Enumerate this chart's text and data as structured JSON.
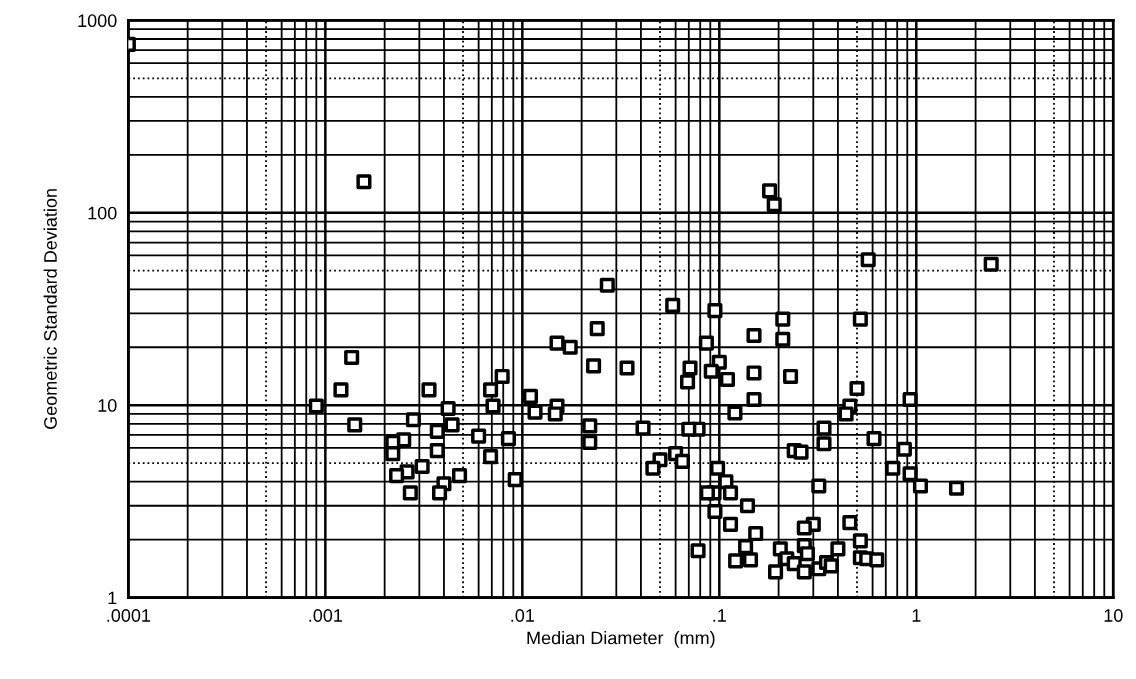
{
  "chart_data": {
    "type": "scatter",
    "xlabel": "Median Diameter  (mm)",
    "ylabel": "Geometric Standard Deviation",
    "log": "xy",
    "grid": true,
    "marker": "square",
    "xlim": [
      0.0001,
      10
    ],
    "ylim": [
      1,
      1000
    ],
    "xticks": [
      {
        "value": 0.0001,
        "label": ".0001"
      },
      {
        "value": 0.001,
        "label": ".001"
      },
      {
        "value": 0.01,
        "label": ".01"
      },
      {
        "value": 0.1,
        "label": ".1"
      },
      1,
      10
    ],
    "yticks": [
      1,
      10,
      100,
      1000
    ],
    "series": [
      {
        "color": "#000000",
        "x": [
          0.0001,
          0.00157,
          0.00136,
          0.0012,
          0.0009,
          0.00336,
          0.0042,
          0.0079,
          0.0069,
          0.0071,
          0.00141,
          0.0028,
          0.0037,
          0.0044,
          0.0025,
          0.0022,
          0.0037,
          0.0022,
          0.0031,
          0.0026,
          0.0023,
          0.0048,
          0.004,
          0.0038,
          0.0027,
          0.006,
          0.0085,
          0.0069,
          0.0092,
          0.18,
          0.19,
          0.57,
          0.027,
          0.058,
          0.095,
          0.21,
          0.52,
          0.15,
          0.21,
          0.024,
          0.015,
          0.0175,
          0.086,
          0.023,
          0.034,
          0.071,
          0.1,
          0.091,
          0.069,
          0.11,
          0.15,
          0.23,
          0.5,
          0.011,
          0.015,
          0.15,
          0.0116,
          0.0147,
          0.022,
          0.022,
          0.041,
          0.078,
          0.07,
          0.12,
          0.46,
          0.44,
          0.34,
          0.34,
          0.24,
          0.26,
          0.61,
          0.76,
          0.05,
          0.046,
          0.06,
          0.065,
          0.098,
          0.108,
          0.094,
          0.114,
          0.139,
          0.095,
          0.087,
          0.32,
          0.114,
          0.153,
          0.078,
          0.136,
          0.121,
          0.144,
          0.193,
          0.204,
          0.22,
          0.24,
          0.27,
          0.3,
          0.27,
          0.28,
          0.27,
          0.32,
          0.35,
          0.37,
          0.4,
          0.46,
          0.52,
          0.52,
          0.56,
          0.63,
          2.4,
          0.93,
          0.87,
          0.93,
          1.05,
          1.6
        ],
        "values": [
          750,
          145,
          17.7,
          12,
          9.9,
          12,
          9.6,
          14.1,
          12,
          9.9,
          7.9,
          8.4,
          7.3,
          7.9,
          6.6,
          6.4,
          5.8,
          5.6,
          4.8,
          4.5,
          4.3,
          4.3,
          3.9,
          3.5,
          3.5,
          6.9,
          6.7,
          5.4,
          4.1,
          130,
          110,
          57,
          42,
          33,
          31,
          28,
          28,
          23,
          22,
          25,
          21,
          20,
          21,
          16,
          15.6,
          15.6,
          16.7,
          15,
          13.2,
          13.6,
          14.7,
          14.1,
          12.2,
          11.1,
          9.9,
          10.7,
          9.2,
          9,
          7.8,
          6.4,
          7.6,
          7.5,
          7.5,
          9.1,
          9.9,
          9,
          7.6,
          6.3,
          5.8,
          5.7,
          6.7,
          4.7,
          5.2,
          4.7,
          5.6,
          5.1,
          4.7,
          4.0,
          3.5,
          3.5,
          3.0,
          2.8,
          3.5,
          3.8,
          2.4,
          2.15,
          1.75,
          1.84,
          1.55,
          1.57,
          1.36,
          1.79,
          1.59,
          1.5,
          1.86,
          2.4,
          2.3,
          1.69,
          1.36,
          1.41,
          1.52,
          1.46,
          1.79,
          2.45,
          1.97,
          1.61,
          1.59,
          1.57,
          54,
          10.7,
          5.9,
          4.4,
          3.8,
          3.7
        ]
      }
    ]
  }
}
